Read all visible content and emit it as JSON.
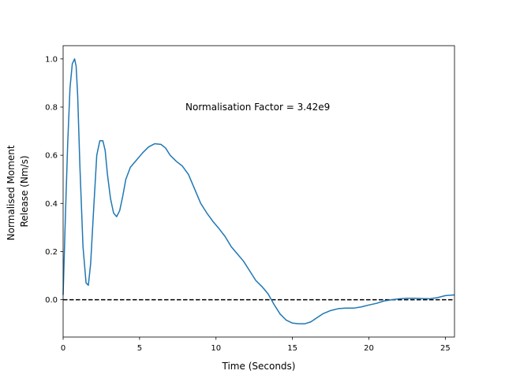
{
  "chart_data": {
    "type": "line",
    "xlabel": "Time (Seconds)",
    "ylabel_lines": [
      "Normalised Moment",
      "Release (Nm/s)"
    ],
    "xlim": [
      0,
      25.6
    ],
    "ylim": [
      -0.155,
      1.055
    ],
    "xticks": [
      0,
      5,
      10,
      15,
      20,
      25
    ],
    "yticks": [
      0.0,
      0.2,
      0.4,
      0.6,
      0.8,
      1.0
    ],
    "xtick_labels": [
      "0",
      "5",
      "10",
      "15",
      "20",
      "25"
    ],
    "ytick_labels": [
      "0.0",
      "0.2",
      "0.4",
      "0.6",
      "0.8",
      "1.0"
    ],
    "annotation": {
      "text": "Normalisation Factor = 3.42e9",
      "x": 8.0,
      "y": 0.8
    },
    "reference_line": {
      "y": 0.0,
      "style": "dashed",
      "color": "#000000"
    },
    "grid": false,
    "series": [
      {
        "color": "#1f77b4",
        "x": [
          0,
          0.15,
          0.3,
          0.45,
          0.6,
          0.75,
          0.85,
          0.95,
          1.1,
          1.3,
          1.5,
          1.65,
          1.8,
          2.0,
          2.2,
          2.4,
          2.6,
          2.75,
          2.9,
          3.1,
          3.3,
          3.5,
          3.7,
          3.9,
          4.1,
          4.4,
          4.8,
          5.2,
          5.6,
          6.0,
          6.4,
          6.7,
          7.0,
          7.4,
          7.8,
          8.2,
          8.6,
          9.0,
          9.4,
          9.8,
          10.2,
          10.6,
          11.0,
          11.4,
          11.8,
          12.2,
          12.6,
          13.0,
          13.4,
          13.8,
          14.2,
          14.6,
          15.0,
          15.4,
          15.8,
          16.2,
          16.6,
          17.0,
          17.5,
          18.0,
          18.5,
          19.0,
          19.5,
          20.0,
          20.5,
          21.0,
          21.5,
          22.0,
          22.5,
          23.0,
          23.5,
          24.0,
          24.5,
          25.0,
          25.6
        ],
        "values": [
          0.02,
          0.35,
          0.65,
          0.88,
          0.98,
          1.0,
          0.97,
          0.85,
          0.55,
          0.22,
          0.07,
          0.06,
          0.15,
          0.38,
          0.6,
          0.66,
          0.66,
          0.62,
          0.52,
          0.42,
          0.36,
          0.345,
          0.37,
          0.43,
          0.5,
          0.55,
          0.58,
          0.61,
          0.635,
          0.648,
          0.645,
          0.63,
          0.6,
          0.575,
          0.555,
          0.52,
          0.46,
          0.4,
          0.36,
          0.325,
          0.295,
          0.262,
          0.22,
          0.19,
          0.16,
          0.12,
          0.08,
          0.055,
          0.025,
          -0.02,
          -0.06,
          -0.085,
          -0.097,
          -0.1,
          -0.1,
          -0.092,
          -0.075,
          -0.058,
          -0.045,
          -0.037,
          -0.035,
          -0.035,
          -0.03,
          -0.022,
          -0.015,
          -0.005,
          0.0,
          0.004,
          0.006,
          0.006,
          0.005,
          0.004,
          0.009,
          0.017,
          0.02
        ]
      }
    ]
  }
}
